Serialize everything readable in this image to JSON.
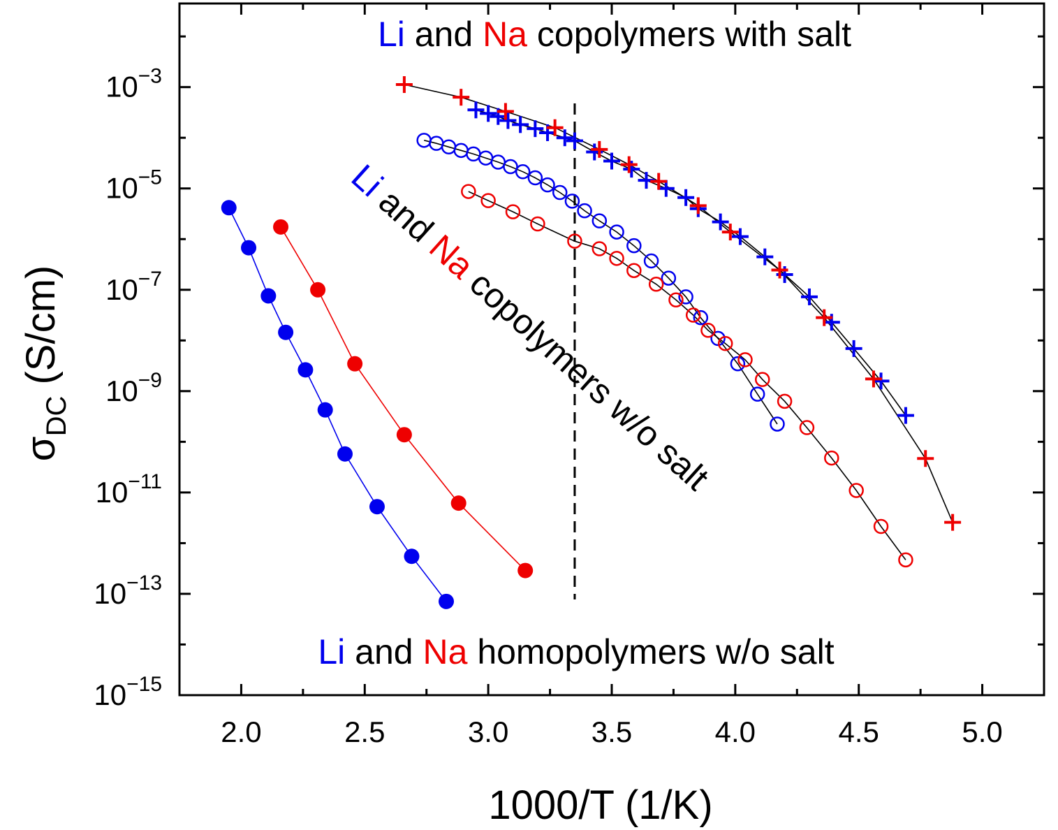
{
  "chart_data": {
    "type": "scatter",
    "xlabel": "1000/T (1/K)",
    "ylabel_main": "σ",
    "ylabel_sub": "DC",
    "ylabel_unit": " (S/cm)",
    "yscale": "log",
    "xlim": [
      1.75,
      5.25
    ],
    "ylim_log10": [
      -15,
      -1.35
    ],
    "x_ticks": [
      "2.0",
      "2.5",
      "3.0",
      "3.5",
      "4.0",
      "4.5",
      "5.0"
    ],
    "x_tick_values": [
      2.0,
      2.5,
      3.0,
      3.5,
      4.0,
      4.5,
      5.0
    ],
    "y_tick_labels": [
      {
        "base": "10",
        "exp": "−3",
        "log": -3
      },
      {
        "base": "10",
        "exp": "−5",
        "log": -5
      },
      {
        "base": "10",
        "exp": "−7",
        "log": -7
      },
      {
        "base": "10",
        "exp": "−9",
        "log": -9
      },
      {
        "base": "10",
        "exp": "−11",
        "log": -11
      },
      {
        "base": "10",
        "exp": "−13",
        "log": -13
      },
      {
        "base": "10",
        "exp": "−15",
        "log": -15
      }
    ],
    "reference_line_x": 3.35,
    "colors": {
      "li": "#0000ee",
      "na": "#ee0000",
      "fit": "#000000"
    },
    "annotations": {
      "top": {
        "li": "Li",
        "mid": " and ",
        "na": "Na",
        "rest": " copolymers with salt"
      },
      "middle": {
        "li": "Li",
        "mid": " and ",
        "na": "Na",
        "rest": " copolymers w/o salt"
      },
      "bottom": {
        "li": "Li",
        "mid": " and ",
        "na": "Na",
        "rest": " homopolymers w/o salt"
      }
    },
    "series": [
      {
        "group": "homopolymer",
        "ion": "Li",
        "marker": "filled-circle",
        "x": [
          1.95,
          2.03,
          2.11,
          2.18,
          2.26,
          2.34,
          2.42,
          2.55,
          2.69,
          2.83
        ],
        "log_y": [
          -5.38,
          -6.17,
          -7.12,
          -7.84,
          -8.58,
          -9.37,
          -10.24,
          -11.28,
          -12.26,
          -13.15
        ]
      },
      {
        "group": "homopolymer",
        "ion": "Na",
        "marker": "filled-circle",
        "x": [
          2.16,
          2.31,
          2.46,
          2.66,
          2.88,
          3.15
        ],
        "log_y": [
          -5.76,
          -7.0,
          -8.46,
          -9.86,
          -11.21,
          -12.54
        ]
      },
      {
        "group": "copolymer-no-salt",
        "ion": "Li",
        "marker": "open-circle",
        "x": [
          2.74,
          2.79,
          2.84,
          2.89,
          2.94,
          2.99,
          3.04,
          3.09,
          3.14,
          3.19,
          3.24,
          3.29,
          3.34,
          3.39,
          3.45,
          3.52,
          3.59,
          3.66,
          3.73,
          3.8,
          3.86,
          3.93,
          4.01,
          4.09,
          4.17
        ],
        "log_y": [
          -4.05,
          -4.11,
          -4.18,
          -4.25,
          -4.32,
          -4.4,
          -4.48,
          -4.57,
          -4.67,
          -4.79,
          -4.93,
          -5.08,
          -5.25,
          -5.44,
          -5.64,
          -5.86,
          -6.13,
          -6.43,
          -6.77,
          -7.14,
          -7.55,
          -7.96,
          -8.46,
          -9.06,
          -9.65
        ]
      },
      {
        "group": "copolymer-no-salt",
        "ion": "Na",
        "marker": "open-circle",
        "x": [
          2.92,
          3.0,
          3.1,
          3.2,
          3.35,
          3.45,
          3.52,
          3.59,
          3.68,
          3.76,
          3.83,
          3.89,
          3.96,
          4.04,
          4.11,
          4.2,
          4.29,
          4.39,
          4.49,
          4.59,
          4.69
        ],
        "log_y": [
          -5.06,
          -5.24,
          -5.46,
          -5.7,
          -6.04,
          -6.19,
          -6.38,
          -6.62,
          -6.89,
          -7.2,
          -7.5,
          -7.8,
          -8.06,
          -8.38,
          -8.77,
          -9.2,
          -9.72,
          -10.32,
          -10.96,
          -11.67,
          -12.33
        ]
      },
      {
        "group": "copolymer-with-salt",
        "ion": "Li",
        "marker": "plus",
        "x": [
          2.95,
          3.0,
          3.04,
          3.08,
          3.13,
          3.19,
          3.24,
          3.31,
          3.35,
          3.43,
          3.5,
          3.58,
          3.64,
          3.72,
          3.8,
          3.85,
          3.94,
          4.02,
          4.12,
          4.2,
          4.3,
          4.39,
          4.48,
          4.59,
          4.69
        ],
        "log_y": [
          -3.45,
          -3.52,
          -3.58,
          -3.66,
          -3.74,
          -3.82,
          -3.9,
          -4.0,
          -4.06,
          -4.28,
          -4.46,
          -4.62,
          -4.84,
          -5.0,
          -5.18,
          -5.4,
          -5.66,
          -5.95,
          -6.35,
          -6.7,
          -7.14,
          -7.64,
          -8.16,
          -8.8,
          -9.48
        ]
      },
      {
        "group": "copolymer-with-salt",
        "ion": "Na",
        "marker": "plus",
        "x": [
          2.66,
          2.89,
          3.07,
          3.27,
          3.45,
          3.57,
          3.69,
          3.85,
          3.98,
          4.18,
          4.36,
          4.56,
          4.77,
          4.88
        ],
        "log_y": [
          -2.95,
          -3.2,
          -3.48,
          -3.8,
          -4.23,
          -4.53,
          -4.86,
          -5.34,
          -5.86,
          -6.61,
          -7.55,
          -8.76,
          -10.33,
          -11.59
        ]
      }
    ]
  }
}
